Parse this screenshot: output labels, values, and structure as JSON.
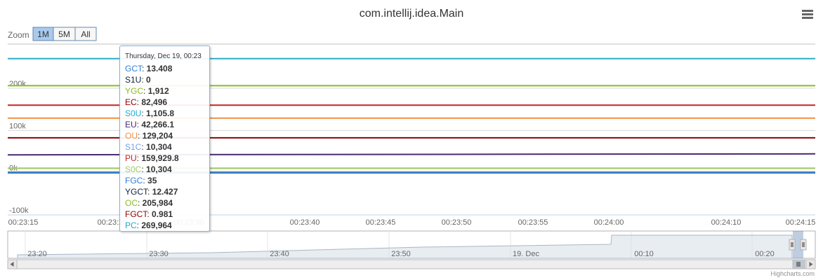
{
  "title": "com.intellij.idea.Main",
  "zoom": {
    "label": "Zoom",
    "buttons": [
      {
        "label": "1M",
        "active": true
      },
      {
        "label": "5M",
        "active": false
      },
      {
        "label": "All",
        "active": false
      }
    ]
  },
  "menu_icon": "hamburger-menu-icon",
  "credits": "Highcharts.com",
  "chart_data": {
    "type": "line",
    "title": "com.intellij.idea.Main",
    "ylim": [
      -100000,
      300000
    ],
    "yticks": [
      {
        "value": 200000,
        "label": "200k"
      },
      {
        "value": 100000,
        "label": "100k"
      },
      {
        "value": 0,
        "label": "0k"
      },
      {
        "value": -100000,
        "label": "-100k"
      }
    ],
    "xticks": [
      "00:23:15",
      "00:23:20",
      "00:23:30",
      "00:23:40",
      "00:23:45",
      "00:23:50",
      "00:23:55",
      "00:24:00",
      "00:24:10",
      "00:24:15"
    ],
    "series": [
      {
        "name": "PC",
        "color": "#2badc6",
        "values": [
          269964,
          269964
        ]
      },
      {
        "name": "OC",
        "color": "#8bbc21",
        "values": [
          205984,
          205984
        ]
      },
      {
        "name": "PU",
        "color": "#c42525",
        "values": [
          159929.8,
          159929.8
        ]
      },
      {
        "name": "OU",
        "color": "#f28f43",
        "values": [
          129204,
          129204
        ]
      },
      {
        "name": "EC",
        "color": "#910000",
        "values": [
          82496,
          82496
        ]
      },
      {
        "name": "EU",
        "color": "#492970",
        "values": [
          42266.1,
          44500
        ]
      },
      {
        "name": "YGC",
        "color": "#a6c96a",
        "values": [
          1912,
          1912
        ]
      },
      {
        "name": "S1C",
        "color": "#77a1e5",
        "values": [
          10304,
          10304
        ]
      },
      {
        "name": "S0C",
        "color": "#a6c96a",
        "values": [
          10304,
          10304
        ]
      },
      {
        "name": "FGCT",
        "color": "#910000",
        "values": [
          0.981,
          0.981
        ]
      },
      {
        "name": "YGCT",
        "color": "#0d233a",
        "values": [
          12.427,
          12.427
        ]
      },
      {
        "name": "GCT",
        "color": "#2f7ed8",
        "values": [
          13.408,
          13.408
        ]
      }
    ],
    "navigator_xticks": [
      "23:20",
      "23:30",
      "23:40",
      "23:50",
      "19. Dec",
      "00:10",
      "00:20"
    ],
    "tooltip": {
      "header": "Thursday, Dec 19, 00:23",
      "rows": [
        {
          "name": "GCT",
          "value": "13.408",
          "color": "#2f7ed8"
        },
        {
          "name": "S1U",
          "value": "0",
          "color": "#0d233a"
        },
        {
          "name": "YGC",
          "value": "1,912",
          "color": "#8bbc21"
        },
        {
          "name": "EC",
          "value": "82,496",
          "color": "#910000"
        },
        {
          "name": "S0U",
          "value": "1,105.8",
          "color": "#1aadce"
        },
        {
          "name": "EU",
          "value": "42,266.1",
          "color": "#492970"
        },
        {
          "name": "OU",
          "value": "129,204",
          "color": "#f28f43"
        },
        {
          "name": "S1C",
          "value": "10,304",
          "color": "#77a1e5"
        },
        {
          "name": "PU",
          "value": "159,929.8",
          "color": "#c42525"
        },
        {
          "name": "S0C",
          "value": "10,304",
          "color": "#a6c96a"
        },
        {
          "name": "FGC",
          "value": "35",
          "color": "#2f7ed8"
        },
        {
          "name": "YGCT",
          "value": "12.427",
          "color": "#0d233a"
        },
        {
          "name": "OC",
          "value": "205,984",
          "color": "#8bbc21"
        },
        {
          "name": "FGCT",
          "value": "0.981",
          "color": "#910000"
        },
        {
          "name": "PC",
          "value": "269,964",
          "color": "#1aadce"
        }
      ]
    }
  }
}
